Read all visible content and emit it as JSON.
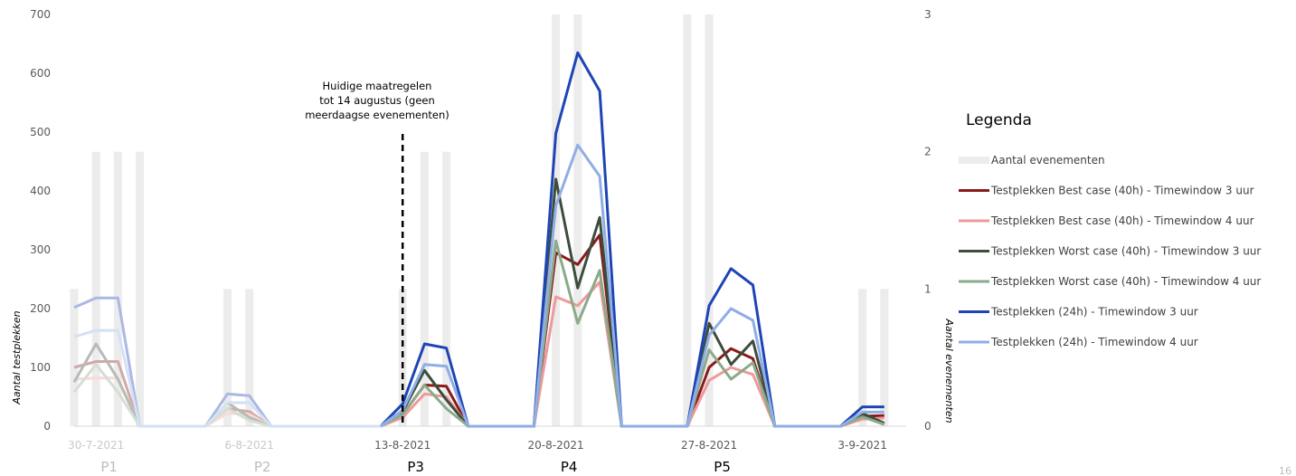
{
  "chart_data": {
    "type": "line",
    "ylabel": "Aantal testplekken",
    "y2label": "Aantal evenementen",
    "ylim": [
      0,
      700
    ],
    "y2lim": [
      0,
      3
    ],
    "yticks": [
      0,
      100,
      200,
      300,
      400,
      500,
      600,
      700
    ],
    "y2ticks": [
      0,
      1,
      2,
      3
    ],
    "x_range": [
      0,
      38
    ],
    "x_tick_labels": [
      {
        "x": 1,
        "label": "30-7-2021"
      },
      {
        "x": 8,
        "label": "6-8-2021"
      },
      {
        "x": 15,
        "label": "13-8-2021"
      },
      {
        "x": 22,
        "label": "20-8-2021"
      },
      {
        "x": 29,
        "label": "27-8-2021"
      },
      {
        "x": 36,
        "label": "3-9-2021"
      }
    ],
    "periods": [
      {
        "x": 1.6,
        "label": "P1",
        "faded": true
      },
      {
        "x": 8.6,
        "label": "P2",
        "faded": true
      },
      {
        "x": 15.6,
        "label": "P3",
        "faded": false
      },
      {
        "x": 22.6,
        "label": "P4",
        "faded": false
      },
      {
        "x": 29.6,
        "label": "P5",
        "faded": false
      }
    ],
    "annotation": {
      "x": 15,
      "lines": [
        "Huidige maatregelen",
        "tot 14 augustus (geen",
        "meerdaagse evenementen)"
      ]
    },
    "legend_title": "Legenda",
    "legend_position": "right",
    "bars": {
      "name": "Aantal evenementen",
      "color": "#ececec",
      "axis": "y2",
      "items": [
        {
          "x": 0,
          "value": 1
        },
        {
          "x": 1,
          "value": 2
        },
        {
          "x": 2,
          "value": 2
        },
        {
          "x": 3,
          "value": 2
        },
        {
          "x": 7,
          "value": 1
        },
        {
          "x": 8,
          "value": 1
        },
        {
          "x": 15,
          "value": 1
        },
        {
          "x": 16,
          "value": 2
        },
        {
          "x": 17,
          "value": 2
        },
        {
          "x": 22,
          "value": 3
        },
        {
          "x": 23,
          "value": 3
        },
        {
          "x": 28,
          "value": 3
        },
        {
          "x": 29,
          "value": 3
        },
        {
          "x": 36,
          "value": 1
        },
        {
          "x": 37,
          "value": 1
        }
      ]
    },
    "x": [
      0,
      1,
      2,
      3,
      4,
      5,
      6,
      7,
      8,
      9,
      10,
      11,
      12,
      13,
      14,
      15,
      16,
      17,
      18,
      19,
      20,
      21,
      22,
      23,
      24,
      25,
      26,
      27,
      28,
      29,
      30,
      31,
      32,
      33,
      34,
      35,
      36,
      37
    ],
    "series": [
      {
        "name": "Testplekken Best case (40h) - Timewindow 3 uur",
        "color": "#8b1a1a",
        "values": [
          100,
          110,
          110,
          0,
          0,
          0,
          0,
          30,
          25,
          0,
          0,
          0,
          0,
          0,
          0,
          20,
          70,
          68,
          0,
          0,
          0,
          0,
          295,
          275,
          325,
          0,
          0,
          0,
          0,
          100,
          132,
          115,
          0,
          0,
          0,
          0,
          17,
          18
        ]
      },
      {
        "name": "Testplekken Best case (40h) - Timewindow 4 uur",
        "color": "#ee9a9a",
        "values": [
          80,
          82,
          82,
          0,
          0,
          0,
          0,
          22,
          20,
          0,
          0,
          0,
          0,
          0,
          0,
          15,
          55,
          50,
          0,
          0,
          0,
          0,
          220,
          205,
          245,
          0,
          0,
          0,
          0,
          78,
          100,
          88,
          0,
          0,
          0,
          0,
          12,
          14
        ]
      },
      {
        "name": "Testplekken Worst case (40h) - Timewindow 3 uur",
        "color": "#3c4d3c",
        "values": [
          75,
          140,
          80,
          0,
          0,
          0,
          0,
          40,
          15,
          0,
          0,
          0,
          0,
          0,
          0,
          25,
          95,
          45,
          0,
          0,
          0,
          0,
          420,
          235,
          355,
          0,
          0,
          0,
          0,
          175,
          105,
          145,
          0,
          0,
          0,
          0,
          22,
          5
        ]
      },
      {
        "name": "Testplekken Worst case (40h) - Timewindow 4 uur",
        "color": "#8aaa8a",
        "values": [
          58,
          105,
          58,
          0,
          0,
          0,
          0,
          30,
          10,
          0,
          0,
          0,
          0,
          0,
          0,
          20,
          70,
          30,
          0,
          0,
          0,
          0,
          315,
          175,
          265,
          0,
          0,
          0,
          0,
          130,
          80,
          108,
          0,
          0,
          0,
          0,
          16,
          3
        ]
      },
      {
        "name": "Testplekken (24h)  - Timewindow 3 uur",
        "color": "#1e45b5",
        "values": [
          202,
          218,
          218,
          0,
          0,
          0,
          0,
          55,
          52,
          0,
          0,
          0,
          0,
          0,
          0,
          38,
          140,
          133,
          0,
          0,
          0,
          0,
          498,
          635,
          570,
          0,
          0,
          0,
          0,
          205,
          268,
          240,
          0,
          0,
          0,
          0,
          33,
          33
        ]
      },
      {
        "name": "Testplekken (24h) - Timewindow 4 uur",
        "color": "#8faee6",
        "values": [
          152,
          163,
          163,
          0,
          0,
          0,
          0,
          40,
          40,
          0,
          0,
          0,
          0,
          0,
          0,
          27,
          105,
          102,
          0,
          0,
          0,
          0,
          375,
          478,
          425,
          0,
          0,
          0,
          0,
          155,
          200,
          180,
          0,
          0,
          0,
          0,
          24,
          24
        ]
      }
    ],
    "faded_before_x": 14.5
  },
  "page_number": "16"
}
